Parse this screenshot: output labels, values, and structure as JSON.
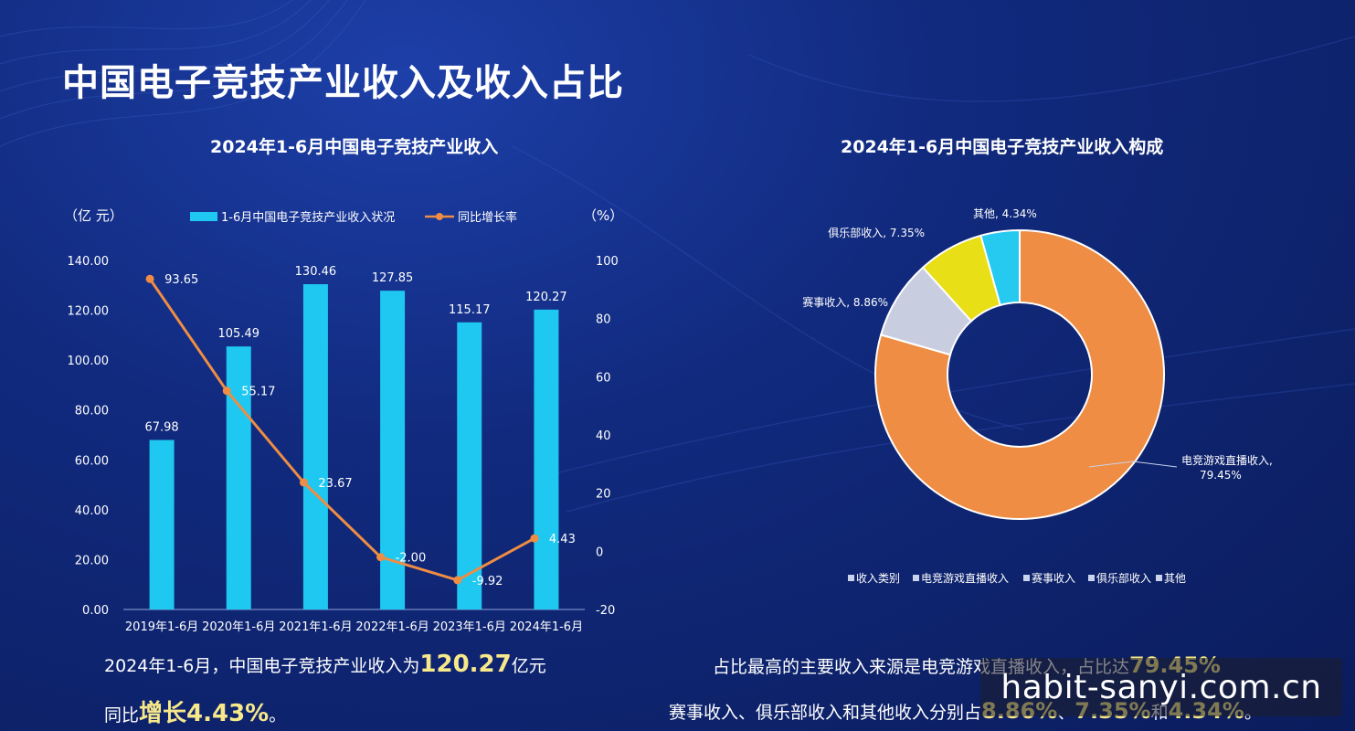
{
  "page": {
    "title": "中国电子竞技产业收入及收入占比",
    "watermark": "habit-sanyi.com.cn"
  },
  "colors": {
    "bar": "#1ec8f0",
    "line": "#ee8d43",
    "donut": [
      "#ee8d43",
      "#c9cde0",
      "#e8df17",
      "#26c9ef"
    ]
  },
  "chart_data": [
    {
      "type": "bar",
      "title": "2024年1-6月中国电子竞技产业收入",
      "categories": [
        "2019年1-6月",
        "2020年1-6月",
        "2021年1-6月",
        "2022年1-6月",
        "2023年1-6月",
        "2024年1-6月"
      ],
      "series": [
        {
          "name": "1-6月中国电子竞技产业收入状况",
          "type": "bar",
          "axis": "left",
          "values": [
            67.98,
            105.49,
            130.46,
            127.85,
            115.17,
            120.27
          ]
        },
        {
          "name": "同比增长率",
          "type": "line",
          "axis": "right",
          "values": [
            93.65,
            55.17,
            23.67,
            -2.0,
            -9.92,
            4.43
          ]
        }
      ],
      "data_labels_bar": [
        "67.98",
        "105.49",
        "130.46",
        "127.85",
        "115.17",
        "120.27"
      ],
      "data_labels_line": [
        "93.65",
        "55.17",
        "23.67",
        "-2.00",
        "-9.92",
        "4.43"
      ],
      "ylabel": "（亿 元）",
      "ylabel_right": "（%）",
      "ylim": [
        0,
        140
      ],
      "ylim_right": [
        -20,
        100
      ],
      "yticks": [
        "0.00",
        "20.00",
        "40.00",
        "60.00",
        "80.00",
        "100.00",
        "120.00",
        "140.00"
      ],
      "yticks_right": [
        "-20",
        "0",
        "20",
        "40",
        "60",
        "80",
        "100"
      ],
      "grid": false,
      "legend_position": "top"
    },
    {
      "type": "pie",
      "title": "2024年1-6月中国电子竞技产业收入构成",
      "donut": true,
      "categories": [
        "电竞游戏直播收入",
        "赛事收入",
        "俱乐部收入",
        "其他"
      ],
      "values": [
        79.45,
        8.86,
        7.35,
        4.34
      ],
      "slice_labels": [
        "电竞游戏直播收入,\n79.45%",
        "赛事收入, 8.86%",
        "俱乐部收入, 7.35%",
        "其他, 4.34%"
      ],
      "legend_title": "收入类别",
      "legend_position": "bottom"
    }
  ],
  "notes": {
    "left_line1_prefix": "2024年1-6月，中国电子竞技产业收入为",
    "left_line1_value": "120.27",
    "left_line1_suffix": "亿元",
    "left_line2_prefix": "同比",
    "left_line2_value": "增长4.43%",
    "left_line2_suffix": "。",
    "right_line1_prefix": "占比最高的主要收入来源是电竞游戏直播收入，占比达",
    "right_line1_value": "79.45%",
    "right_line2_prefix": "赛事收入、俱乐部收入和其他收入分别占",
    "right_line2_v1": "8.86%",
    "right_line2_sep1": "、",
    "right_line2_v2": "7.35%",
    "right_line2_sep2": "和",
    "right_line2_v3": "4.34%",
    "right_line2_suffix": "。"
  }
}
